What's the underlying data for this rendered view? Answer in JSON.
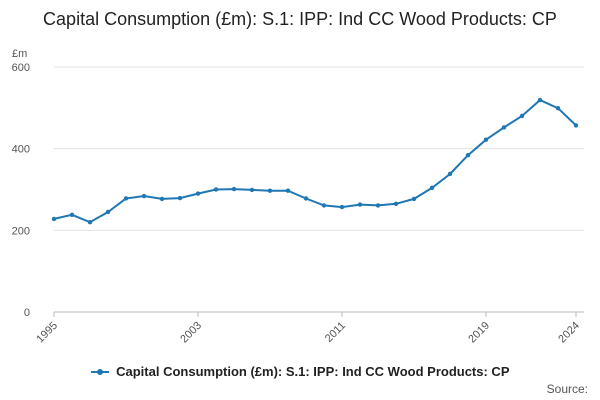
{
  "chart_data": {
    "type": "line",
    "title": "Capital Consumption (£m): S.1: IPP: Ind CC Wood Products: CP",
    "ylabel": "£m",
    "xlabel": "",
    "ylim": [
      0,
      600
    ],
    "xlim": [
      1995,
      2024
    ],
    "yticks": [
      0,
      200,
      400,
      600
    ],
    "xticks": [
      1995,
      2003,
      2011,
      2019,
      2024
    ],
    "grid": true,
    "legend_position": "bottom",
    "color": "#1f77b4",
    "series": [
      {
        "name": "Capital Consumption (£m): S.1: IPP: Ind CC Wood Products: CP",
        "x": [
          1995,
          1996,
          1997,
          1998,
          1999,
          2000,
          2001,
          2002,
          2003,
          2004,
          2005,
          2006,
          2007,
          2008,
          2009,
          2010,
          2011,
          2012,
          2013,
          2014,
          2015,
          2016,
          2017,
          2018,
          2019,
          2020,
          2021,
          2022,
          2023,
          2024
        ],
        "values": [
          228,
          238,
          220,
          245,
          278,
          284,
          277,
          279,
          290,
          300,
          301,
          299,
          297,
          297,
          278,
          261,
          257,
          263,
          261,
          265,
          277,
          304,
          338,
          384,
          422,
          452,
          480,
          519,
          499,
          457
        ]
      }
    ]
  },
  "legend": {
    "label": "Capital Consumption (£m): S.1: IPP: Ind CC Wood Products: CP"
  },
  "source": "Source:"
}
